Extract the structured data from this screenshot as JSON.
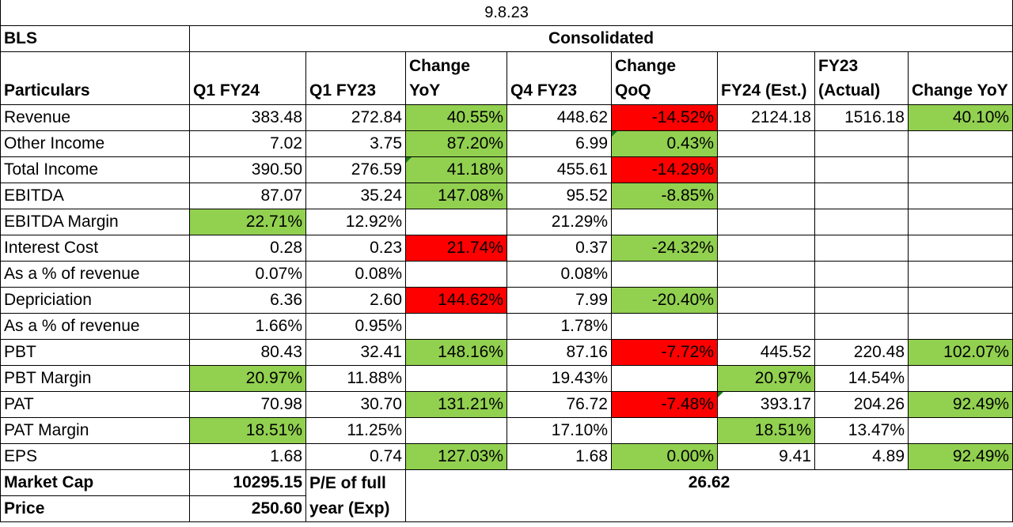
{
  "date": "9.8.23",
  "company": "BLS",
  "basis": "Consolidated",
  "headers": {
    "particulars": "Particulars",
    "q1fy24": "Q1 FY24",
    "q1fy23": "Q1 FY23",
    "chg_yoy": "Change YoY",
    "q4fy23": "Q4 FY23",
    "chg_qoq": "Change QoQ",
    "fy24est": "FY24 (Est.)",
    "fy23act": "FY23 (Actual)",
    "chg_yoy2": "Change YoY"
  },
  "rows": [
    {
      "label": "Revenue",
      "q1fy24": "383.48",
      "q1fy23": "272.84",
      "yoy": "40.55%",
      "q4fy23": "448.62",
      "qoq": "-14.52%",
      "fy24": "2124.18",
      "fy23": "1516.18",
      "yoy2": "40.10%"
    },
    {
      "label": "Other Income",
      "q1fy24": "7.02",
      "q1fy23": "3.75",
      "yoy": "87.20%",
      "q4fy23": "6.99",
      "qoq": "0.43%",
      "fy24": "",
      "fy23": "",
      "yoy2": ""
    },
    {
      "label": "Total Income",
      "q1fy24": "390.50",
      "q1fy23": "276.59",
      "yoy": "41.18%",
      "q4fy23": "455.61",
      "qoq": "-14.29%",
      "fy24": "",
      "fy23": "",
      "yoy2": ""
    },
    {
      "label": "EBITDA",
      "q1fy24": "87.07",
      "q1fy23": "35.24",
      "yoy": "147.08%",
      "q4fy23": "95.52",
      "qoq": "-8.85%",
      "fy24": "",
      "fy23": "",
      "yoy2": ""
    },
    {
      "label": "EBITDA Margin",
      "q1fy24": "22.71%",
      "q1fy23": "12.92%",
      "yoy": "",
      "q4fy23": "21.29%",
      "qoq": "",
      "fy24": "",
      "fy23": "",
      "yoy2": ""
    },
    {
      "label": "Interest Cost",
      "q1fy24": "0.28",
      "q1fy23": "0.23",
      "yoy": "21.74%",
      "q4fy23": "0.37",
      "qoq": "-24.32%",
      "fy24": "",
      "fy23": "",
      "yoy2": ""
    },
    {
      "label": "As a % of revenue",
      "q1fy24": "0.07%",
      "q1fy23": "0.08%",
      "yoy": "",
      "q4fy23": "0.08%",
      "qoq": "",
      "fy24": "",
      "fy23": "",
      "yoy2": ""
    },
    {
      "label": "Depriciation",
      "q1fy24": "6.36",
      "q1fy23": "2.60",
      "yoy": "144.62%",
      "q4fy23": "7.99",
      "qoq": "-20.40%",
      "fy24": "",
      "fy23": "",
      "yoy2": ""
    },
    {
      "label": "As a % of revenue",
      "q1fy24": "1.66%",
      "q1fy23": "0.95%",
      "yoy": "",
      "q4fy23": "1.78%",
      "qoq": "",
      "fy24": "",
      "fy23": "",
      "yoy2": ""
    },
    {
      "label": "PBT",
      "q1fy24": "80.43",
      "q1fy23": "32.41",
      "yoy": "148.16%",
      "q4fy23": "87.16",
      "qoq": "-7.72%",
      "fy24": "445.52",
      "fy23": "220.48",
      "yoy2": "102.07%"
    },
    {
      "label": "PBT Margin",
      "q1fy24": "20.97%",
      "q1fy23": "11.88%",
      "yoy": "",
      "q4fy23": "19.43%",
      "qoq": "",
      "fy24": "20.97%",
      "fy23": "14.54%",
      "yoy2": ""
    },
    {
      "label": "PAT",
      "q1fy24": "70.98",
      "q1fy23": "30.70",
      "yoy": "131.21%",
      "q4fy23": "76.72",
      "qoq": "-7.48%",
      "fy24": "393.17",
      "fy23": "204.26",
      "yoy2": "92.49%"
    },
    {
      "label": "PAT Margin",
      "q1fy24": "18.51%",
      "q1fy23": "11.25%",
      "yoy": "",
      "q4fy23": "17.10%",
      "qoq": "",
      "fy24": "18.51%",
      "fy23": "13.47%",
      "yoy2": ""
    },
    {
      "label": "EPS",
      "q1fy24": "1.68",
      "q1fy23": "0.74",
      "yoy": "127.03%",
      "q4fy23": "1.68",
      "qoq": "0.00%",
      "fy24": "9.41",
      "fy23": "4.89",
      "yoy2": "92.49%"
    }
  ],
  "footer": {
    "market_cap_label": "Market Cap",
    "market_cap_value": "10295.15",
    "pe_label": "P/E of full year (Exp)",
    "pe_value": "26.62",
    "price_label": "Price",
    "price_value": "250.60"
  },
  "colors": {
    "positive": "#92d050",
    "negative": "#ff0000",
    "comment_marker": "#1a7a1a"
  }
}
